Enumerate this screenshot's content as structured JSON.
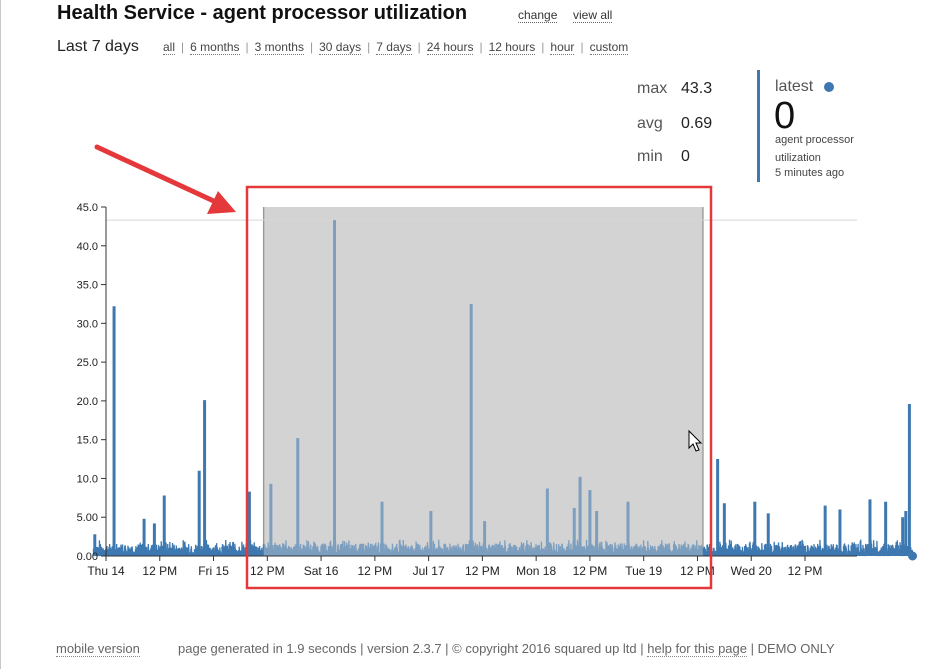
{
  "header": {
    "title": "Health Service - agent processor utilization",
    "change_label": "change",
    "view_all_label": "view all"
  },
  "period": {
    "label": "Last 7 days",
    "ranges": [
      "all",
      "6 months",
      "3 months",
      "30 days",
      "7 days",
      "24 hours",
      "12 hours",
      "hour",
      "custom"
    ]
  },
  "stats": {
    "max_label": "max",
    "max_value": "43.3",
    "avg_label": "avg",
    "avg_value": "0.69",
    "min_label": "min",
    "min_value": "0"
  },
  "latest": {
    "title": "latest",
    "value": "0",
    "description": "agent processor utilization",
    "ago": "5 minutes ago"
  },
  "colors": {
    "series": "#3d78b0",
    "selection": "#d3d3d3",
    "highlight": "#e5383b"
  },
  "chart_data": {
    "type": "line",
    "ylim": [
      0,
      45
    ],
    "yticks": [
      "0.00",
      "5.00",
      "10.0",
      "15.0",
      "20.0",
      "25.0",
      "30.0",
      "35.0",
      "40.0",
      "45.0"
    ],
    "xlim": [
      0,
      156
    ],
    "xticks": [
      {
        "t": 0,
        "label": "Thu 14"
      },
      {
        "t": 12,
        "label": "12 PM"
      },
      {
        "t": 24,
        "label": "Fri 15"
      },
      {
        "t": 36,
        "label": "12 PM"
      },
      {
        "t": 48,
        "label": "Sat 16"
      },
      {
        "t": 60,
        "label": "12 PM"
      },
      {
        "t": 72,
        "label": "Jul 17"
      },
      {
        "t": 84,
        "label": "12 PM"
      },
      {
        "t": 96,
        "label": "Mon 18"
      },
      {
        "t": 108,
        "label": "12 PM"
      },
      {
        "t": 120,
        "label": "Tue 19"
      },
      {
        "t": 132,
        "label": "12 PM"
      },
      {
        "t": 144,
        "label": "Wed 20"
      },
      {
        "t": 156,
        "label": "12 PM"
      }
    ],
    "baseline_range": [
      0.3,
      1.6
    ],
    "max_line": 43.3,
    "spikes": [
      {
        "t": -2.5,
        "v": 2.8
      },
      {
        "t": 1.8,
        "v": 32.2
      },
      {
        "t": 8.5,
        "v": 4.8
      },
      {
        "t": 10.8,
        "v": 4.2
      },
      {
        "t": 13.0,
        "v": 7.8
      },
      {
        "t": 20.8,
        "v": 11.0
      },
      {
        "t": 22.0,
        "v": 20.1
      },
      {
        "t": 32.0,
        "v": 8.3
      },
      {
        "t": 36.8,
        "v": 9.3
      },
      {
        "t": 42.8,
        "v": 15.2
      },
      {
        "t": 51.0,
        "v": 43.3
      },
      {
        "t": 61.6,
        "v": 7.0
      },
      {
        "t": 72.5,
        "v": 5.8
      },
      {
        "t": 81.5,
        "v": 32.5
      },
      {
        "t": 84.5,
        "v": 4.5
      },
      {
        "t": 98.5,
        "v": 8.7
      },
      {
        "t": 104.5,
        "v": 6.2
      },
      {
        "t": 105.8,
        "v": 10.2
      },
      {
        "t": 108.0,
        "v": 8.5
      },
      {
        "t": 109.5,
        "v": 5.8
      },
      {
        "t": 116.5,
        "v": 7.0
      },
      {
        "t": 136.5,
        "v": 12.5
      },
      {
        "t": 138.0,
        "v": 6.8
      },
      {
        "t": 144.8,
        "v": 7.0
      },
      {
        "t": 147.8,
        "v": 5.5
      },
      {
        "t": 160.5,
        "v": 6.5
      },
      {
        "t": 163.8,
        "v": 6.0
      },
      {
        "t": 170.5,
        "v": 7.3
      },
      {
        "t": 174.0,
        "v": 7.0
      },
      {
        "t": 177.8,
        "v": 5.0
      },
      {
        "t": 178.5,
        "v": 5.8
      },
      {
        "t": 179.3,
        "v": 19.6
      }
    ],
    "selection": [
      35.2,
      133.2
    ],
    "last_point": {
      "t": 180.0,
      "v": 0
    }
  },
  "footer": {
    "mobile": "mobile version",
    "generated": "page generated in 1.9 seconds | version 2.3.7 | © copyright 2016 squared up ltd |",
    "help": "help for this page",
    "demo": "| DEMO ONLY"
  }
}
